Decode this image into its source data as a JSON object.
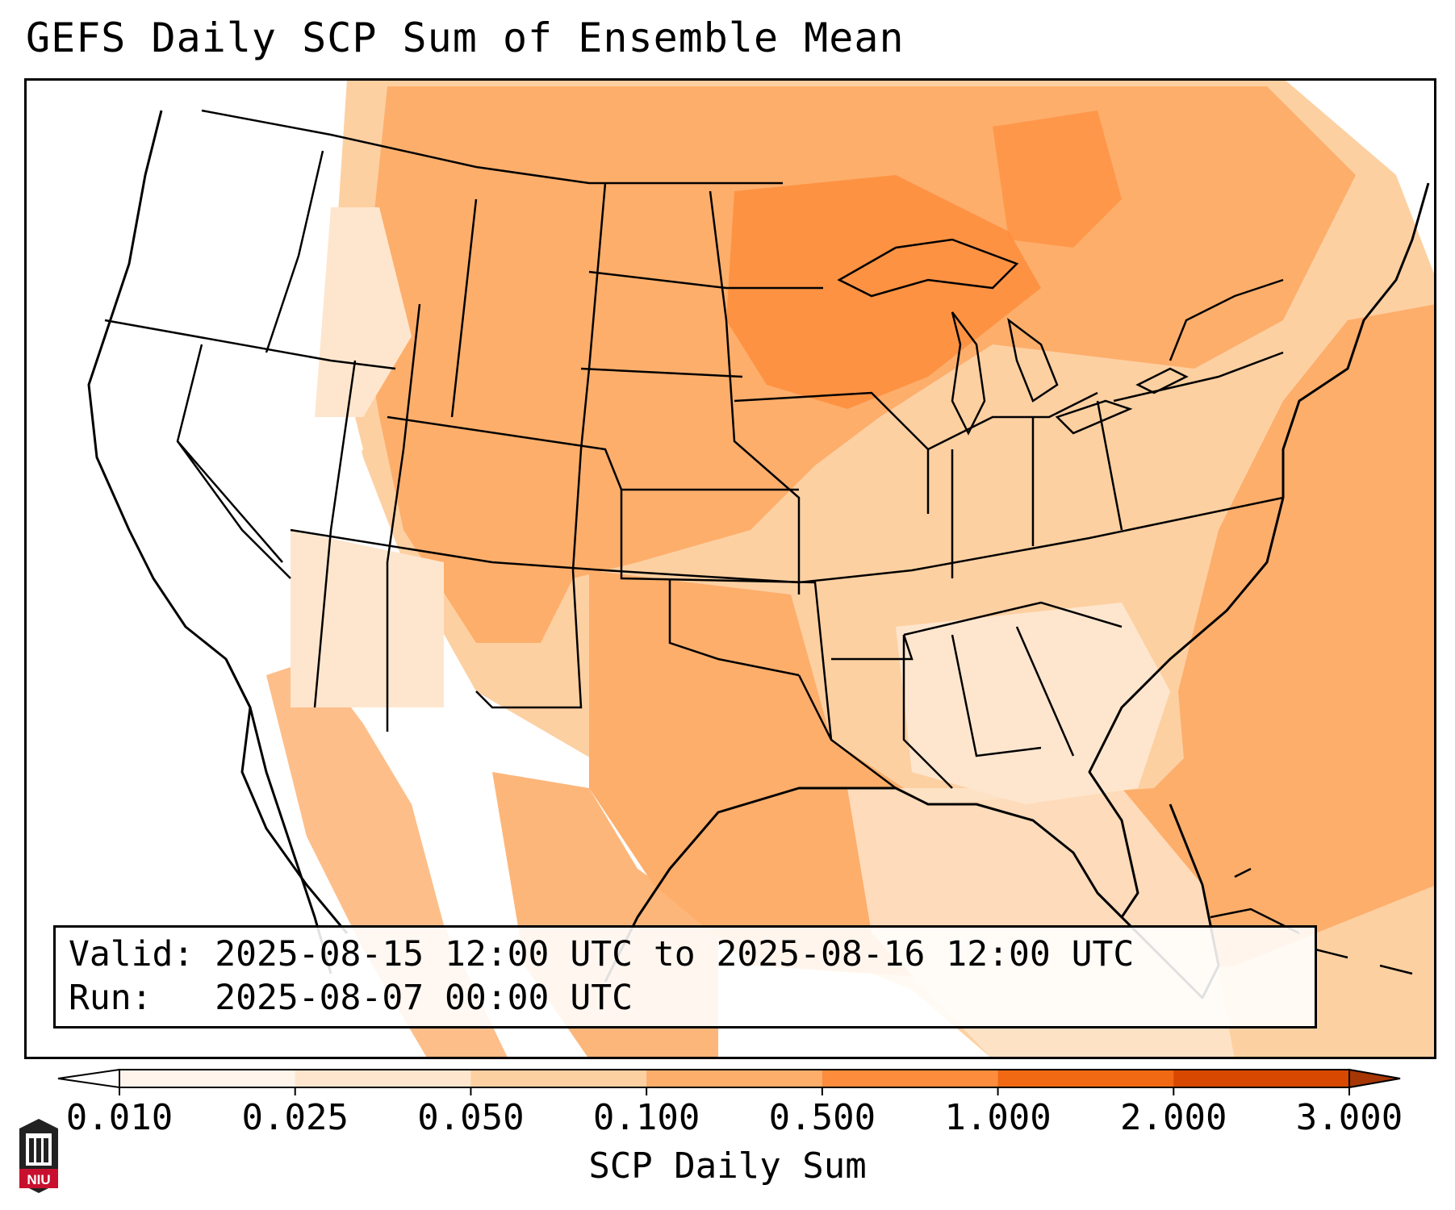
{
  "title": "GEFS Daily SCP Sum of Ensemble Mean",
  "info": {
    "valid_line": "Valid: 2025-08-15 12:00 UTC to 2025-08-16 12:00 UTC",
    "run_line": "Run:   2025-08-07 00:00 UTC"
  },
  "colorbar": {
    "label": "SCP Daily Sum",
    "ticks": [
      "0.010",
      "0.025",
      "0.050",
      "0.100",
      "0.500",
      "1.000",
      "2.000",
      "3.000"
    ],
    "colors": [
      "#fff5eb",
      "#fee6ce",
      "#fdd0a2",
      "#fdae6b",
      "#fd8d3c",
      "#f16913",
      "#d94801",
      "#a63603"
    ],
    "under_color": "#ffffff"
  },
  "logo": {
    "text": "NIU",
    "colors": {
      "primary": "#c8102e",
      "dark": "#222222"
    }
  },
  "map": {
    "projection": "lambert-conformal",
    "region": "CONUS",
    "colors": {
      "land_outline": "#000000",
      "ocean": "#ffffff"
    }
  }
}
